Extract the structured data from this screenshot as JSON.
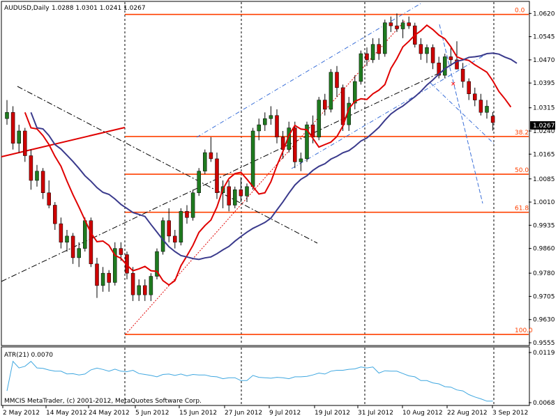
{
  "chart_data": [
    {
      "type": "candlestick",
      "title": "AUDUSD,Daily",
      "ohlc_readout": "1.0288 1.0301 1.0241 1.0267",
      "last_price_label": "1.0267",
      "x_tick_labels": [
        "2 May 2012",
        "14 May 2012",
        "24 May 2012",
        "5 Jun 2012",
        "15 Jun 2012",
        "27 Jun 2012",
        "9 Jul 2012",
        "19 Jul 2012",
        "31 Jul 2012",
        "10 Aug 2012",
        "22 Aug 2012",
        "3 Sep 2012"
      ],
      "y_tick_labels": [
        "1.0620",
        "1.0545",
        "1.0470",
        "1.0395",
        "1.0315",
        "1.0240",
        "1.0165",
        "1.0085",
        "1.0010",
        "0.9935",
        "0.9860",
        "0.9780",
        "0.9705",
        "0.9630",
        "0.9555"
      ],
      "ylim": [
        0.9555,
        1.065
      ],
      "fib_levels": [
        {
          "label": "0.0",
          "price": 1.0617
        },
        {
          "label": "38.2",
          "price": 1.0222
        },
        {
          "label": "50.0",
          "price": 1.01
        },
        {
          "label": "61.8",
          "price": 0.9977
        },
        {
          "label": "100.0",
          "price": 0.9582
        }
      ],
      "candles": [
        [
          1.028,
          1.034,
          1.026,
          1.03
        ],
        [
          1.03,
          1.032,
          1.018,
          1.02
        ],
        [
          1.02,
          1.026,
          1.017,
          1.024
        ],
        [
          1.024,
          1.025,
          1.014,
          1.016
        ],
        [
          1.016,
          1.018,
          1.005,
          1.008
        ],
        [
          1.008,
          1.013,
          1.006,
          1.011
        ],
        [
          1.011,
          1.012,
          1.002,
          1.004
        ],
        [
          1.004,
          1.008,
          0.999,
          1.0
        ],
        [
          1.0,
          1.001,
          0.992,
          0.994
        ],
        [
          0.994,
          0.996,
          0.986,
          0.988
        ],
        [
          0.988,
          0.992,
          0.985,
          0.99
        ],
        [
          0.99,
          0.991,
          0.981,
          0.983
        ],
        [
          0.983,
          0.988,
          0.98,
          0.986
        ],
        [
          0.986,
          0.996,
          0.985,
          0.995
        ],
        [
          0.995,
          0.996,
          0.98,
          0.981
        ],
        [
          0.981,
          0.983,
          0.97,
          0.974
        ],
        [
          0.974,
          0.98,
          0.972,
          0.978
        ],
        [
          0.978,
          0.979,
          0.972,
          0.975
        ],
        [
          0.975,
          0.988,
          0.974,
          0.986
        ],
        [
          0.986,
          0.988,
          0.982,
          0.984
        ],
        [
          0.984,
          0.985,
          0.976,
          0.978
        ],
        [
          0.978,
          0.98,
          0.969,
          0.971
        ],
        [
          0.971,
          0.976,
          0.969,
          0.974
        ],
        [
          0.974,
          0.976,
          0.969,
          0.971
        ],
        [
          0.971,
          0.978,
          0.969,
          0.977
        ],
        [
          0.977,
          0.986,
          0.976,
          0.985
        ],
        [
          0.985,
          0.996,
          0.984,
          0.995
        ],
        [
          0.995,
          0.999,
          0.988,
          0.99
        ],
        [
          0.99,
          0.992,
          0.986,
          0.988
        ],
        [
          0.988,
          0.999,
          0.987,
          0.998
        ],
        [
          0.998,
          1.0,
          0.994,
          0.996
        ],
        [
          0.996,
          1.005,
          0.995,
          1.004
        ],
        [
          1.004,
          1.012,
          1.003,
          1.011
        ],
        [
          1.011,
          1.018,
          1.01,
          1.017
        ],
        [
          1.017,
          1.022,
          1.014,
          1.015
        ],
        [
          1.015,
          1.017,
          1.002,
          1.004
        ],
        [
          1.004,
          1.008,
          0.999,
          1.006
        ],
        [
          1.006,
          1.008,
          0.998,
          1.0
        ],
        [
          1.0,
          1.006,
          0.999,
          1.005
        ],
        [
          1.005,
          1.009,
          1.001,
          1.003
        ],
        [
          1.003,
          1.007,
          1.001,
          1.006
        ],
        [
          1.006,
          1.025,
          1.005,
          1.024
        ],
        [
          1.024,
          1.028,
          1.021,
          1.026
        ],
        [
          1.026,
          1.03,
          1.024,
          1.028
        ],
        [
          1.028,
          1.032,
          1.026,
          1.029
        ],
        [
          1.029,
          1.031,
          1.02,
          1.022
        ],
        [
          1.022,
          1.024,
          1.015,
          1.018
        ],
        [
          1.018,
          1.027,
          1.017,
          1.025
        ],
        [
          1.025,
          1.027,
          1.012,
          1.014
        ],
        [
          1.014,
          1.017,
          1.011,
          1.015
        ],
        [
          1.015,
          1.027,
          1.014,
          1.026
        ],
        [
          1.026,
          1.029,
          1.02,
          1.022
        ],
        [
          1.022,
          1.035,
          1.021,
          1.034
        ],
        [
          1.034,
          1.036,
          1.029,
          1.031
        ],
        [
          1.031,
          1.044,
          1.03,
          1.043
        ],
        [
          1.043,
          1.045,
          1.035,
          1.038
        ],
        [
          1.038,
          1.039,
          1.024,
          1.026
        ],
        [
          1.026,
          1.035,
          1.024,
          1.033
        ],
        [
          1.033,
          1.042,
          1.031,
          1.04
        ],
        [
          1.04,
          1.05,
          1.039,
          1.049
        ],
        [
          1.049,
          1.051,
          1.045,
          1.047
        ],
        [
          1.047,
          1.054,
          1.046,
          1.052
        ],
        [
          1.052,
          1.054,
          1.047,
          1.049
        ],
        [
          1.049,
          1.06,
          1.048,
          1.059
        ],
        [
          1.059,
          1.061,
          1.056,
          1.058
        ],
        [
          1.058,
          1.062,
          1.056,
          1.057
        ],
        [
          1.057,
          1.06,
          1.054,
          1.059
        ],
        [
          1.059,
          1.061,
          1.057,
          1.058
        ],
        [
          1.058,
          1.059,
          1.051,
          1.052
        ],
        [
          1.052,
          1.054,
          1.047,
          1.049
        ],
        [
          1.049,
          1.052,
          1.046,
          1.051
        ],
        [
          1.051,
          1.052,
          1.044,
          1.046
        ],
        [
          1.046,
          1.048,
          1.041,
          1.042
        ],
        [
          1.042,
          1.049,
          1.041,
          1.048
        ],
        [
          1.048,
          1.051,
          1.045,
          1.047
        ],
        [
          1.047,
          1.053,
          1.045,
          1.044
        ],
        [
          1.044,
          1.046,
          1.038,
          1.04
        ],
        [
          1.04,
          1.041,
          1.034,
          1.036
        ],
        [
          1.036,
          1.038,
          1.032,
          1.034
        ],
        [
          1.034,
          1.036,
          1.029,
          1.03
        ],
        [
          1.03,
          1.034,
          1.028,
          1.032
        ],
        [
          1.0288,
          1.0301,
          1.0241,
          1.0267
        ]
      ]
    },
    {
      "type": "line",
      "title": "ATR(21) 0.0070",
      "y_tick_labels": [
        "0.0119",
        "0.0068"
      ],
      "ylim": [
        0.0068,
        0.0119
      ]
    }
  ],
  "footer": {
    "copyright": "MMCIS MetaTrader, (c) 2001-2012, MetaQuotes Software Corp."
  },
  "annotations": {
    "marker": "×"
  },
  "colors": {
    "bull": "#1f7a1f",
    "bear": "#cc0000",
    "fib": "#ff4000",
    "ma_red": "#e00000",
    "ma_navy": "#3a3a8c",
    "atr": "#3fa7e0",
    "grid": "#000000"
  }
}
